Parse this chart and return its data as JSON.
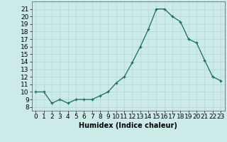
{
  "x": [
    0,
    1,
    2,
    3,
    4,
    5,
    6,
    7,
    8,
    9,
    10,
    11,
    12,
    13,
    14,
    15,
    16,
    17,
    18,
    19,
    20,
    21,
    22,
    23
  ],
  "y": [
    10,
    10,
    8.5,
    9,
    8.5,
    9,
    9,
    9,
    9.5,
    10,
    11.2,
    12,
    13.9,
    16,
    18.3,
    21,
    21,
    20,
    19.3,
    17,
    16.5,
    14.2,
    12,
    11.5
  ],
  "xlabel": "Humidex (Indice chaleur)",
  "xlim": [
    -0.5,
    23.5
  ],
  "ylim": [
    7.5,
    22
  ],
  "yticks": [
    8,
    9,
    10,
    11,
    12,
    13,
    14,
    15,
    16,
    17,
    18,
    19,
    20,
    21
  ],
  "xticks": [
    0,
    1,
    2,
    3,
    4,
    5,
    6,
    7,
    8,
    9,
    10,
    11,
    12,
    13,
    14,
    15,
    16,
    17,
    18,
    19,
    20,
    21,
    22,
    23
  ],
  "line_color": "#1a6b5a",
  "bg_color": "#cceae8",
  "grid_color": "#afd8d4",
  "axis_fontsize": 7,
  "tick_fontsize": 6.5
}
